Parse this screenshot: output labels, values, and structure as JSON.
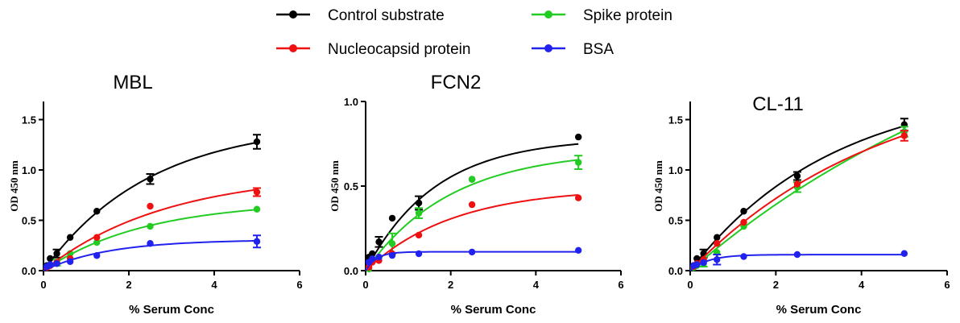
{
  "legend": [
    {
      "label": "Control substrate",
      "color": "#000000"
    },
    {
      "label": "Spike protein",
      "color": "#22cc22"
    },
    {
      "label": "Nucleocapsid protein",
      "color": "#ee1111"
    },
    {
      "label": "BSA",
      "color": "#2222ee"
    }
  ],
  "chart_data": [
    {
      "type": "scatter",
      "title": "MBL",
      "xlabel": "% Serum Conc",
      "ylabel": "OD 450 nm",
      "xlim": [
        0,
        6
      ],
      "ylim": [
        0,
        1.5
      ],
      "xticks": [
        "0",
        "2",
        "4",
        "6"
      ],
      "yticks": [
        "0.0",
        "0.5",
        "1.0",
        "1.5"
      ],
      "x": [
        0.078,
        0.156,
        0.3125,
        0.625,
        1.25,
        2.5,
        5
      ],
      "series": [
        {
          "name": "Control substrate",
          "color": "#000000",
          "values": [
            0.05,
            0.12,
            0.17,
            0.33,
            0.59,
            0.91,
            1.28
          ],
          "errors": [
            0,
            0,
            0.04,
            0,
            0,
            0.05,
            0.07
          ]
        },
        {
          "name": "Spike protein",
          "color": "#22cc22",
          "values": [
            0.04,
            0.05,
            0.08,
            0.17,
            0.28,
            0.44,
            0.61
          ],
          "errors": [
            0,
            0,
            0.03,
            0,
            0,
            0,
            0
          ]
        },
        {
          "name": "Nucleocapsid protein",
          "color": "#ee1111",
          "values": [
            0.03,
            0.05,
            0.08,
            0.12,
            0.33,
            0.64,
            0.78
          ],
          "errors": [
            0,
            0,
            0,
            0,
            0,
            0,
            0.04
          ]
        },
        {
          "name": "BSA",
          "color": "#2222ee",
          "values": [
            0.04,
            0.06,
            0.07,
            0.09,
            0.15,
            0.27,
            0.29
          ],
          "errors": [
            0,
            0,
            0,
            0,
            0,
            0,
            0.06
          ]
        }
      ]
    },
    {
      "type": "scatter",
      "title": "FCN2",
      "xlabel": "% Serum Conc",
      "ylabel": "OD 450 nm",
      "xlim": [
        0,
        6
      ],
      "ylim": [
        0,
        1.0
      ],
      "xticks": [
        "0",
        "2",
        "4",
        "6"
      ],
      "yticks": [
        "0.0",
        "0.5",
        "1.0"
      ],
      "x": [
        0.078,
        0.156,
        0.3125,
        0.625,
        1.25,
        2.5,
        5
      ],
      "series": [
        {
          "name": "Control substrate",
          "color": "#000000",
          "values": [
            0.08,
            0.1,
            0.17,
            0.31,
            0.4,
            0.54,
            0.79
          ],
          "errors": [
            0,
            0,
            0.03,
            0,
            0.04,
            0,
            0
          ]
        },
        {
          "name": "Spike protein",
          "color": "#22cc22",
          "values": [
            0.01,
            0.06,
            0.08,
            0.16,
            0.34,
            0.54,
            0.64
          ],
          "errors": [
            0,
            0,
            0,
            0.06,
            0.03,
            0,
            0.04
          ]
        },
        {
          "name": "Nucleocapsid protein",
          "color": "#ee1111",
          "values": [
            0.02,
            0.05,
            0.06,
            0.1,
            0.21,
            0.39,
            0.43
          ],
          "errors": [
            0,
            0,
            0,
            0,
            0,
            0,
            0
          ]
        },
        {
          "name": "BSA",
          "color": "#2222ee",
          "values": [
            0.05,
            0.07,
            0.08,
            0.09,
            0.1,
            0.11,
            0.12
          ],
          "errors": [
            0,
            0,
            0,
            0,
            0,
            0,
            0
          ]
        }
      ]
    },
    {
      "type": "scatter",
      "title": "CL-11",
      "xlabel": "% Serum Conc",
      "ylabel": "OD 450 nm",
      "xlim": [
        0,
        6
      ],
      "ylim": [
        0,
        1.5
      ],
      "xticks": [
        "0",
        "2",
        "4",
        "6"
      ],
      "yticks": [
        "0.0",
        "0.5",
        "1.0",
        "1.5"
      ],
      "x": [
        0.078,
        0.156,
        0.3125,
        0.625,
        1.25,
        2.5,
        5
      ],
      "series": [
        {
          "name": "Control substrate",
          "color": "#000000",
          "values": [
            0.05,
            0.12,
            0.17,
            0.33,
            0.59,
            0.94,
            1.45
          ],
          "errors": [
            0,
            0,
            0.04,
            0,
            0,
            0.04,
            0.06
          ]
        },
        {
          "name": "Spike protein",
          "color": "#22cc22",
          "values": [
            0.03,
            0.05,
            0.07,
            0.18,
            0.44,
            0.83,
            1.38
          ],
          "errors": [
            0,
            0,
            0.03,
            0,
            0,
            0.05,
            0.05
          ]
        },
        {
          "name": "Nucleocapsid protein",
          "color": "#ee1111",
          "values": [
            0.04,
            0.07,
            0.11,
            0.27,
            0.48,
            0.86,
            1.34
          ],
          "errors": [
            0,
            0,
            0,
            0,
            0,
            0,
            0.05
          ]
        },
        {
          "name": "BSA",
          "color": "#2222ee",
          "values": [
            0.05,
            0.06,
            0.08,
            0.11,
            0.14,
            0.16,
            0.17
          ],
          "errors": [
            0,
            0,
            0,
            0.05,
            0,
            0,
            0
          ]
        }
      ]
    }
  ]
}
